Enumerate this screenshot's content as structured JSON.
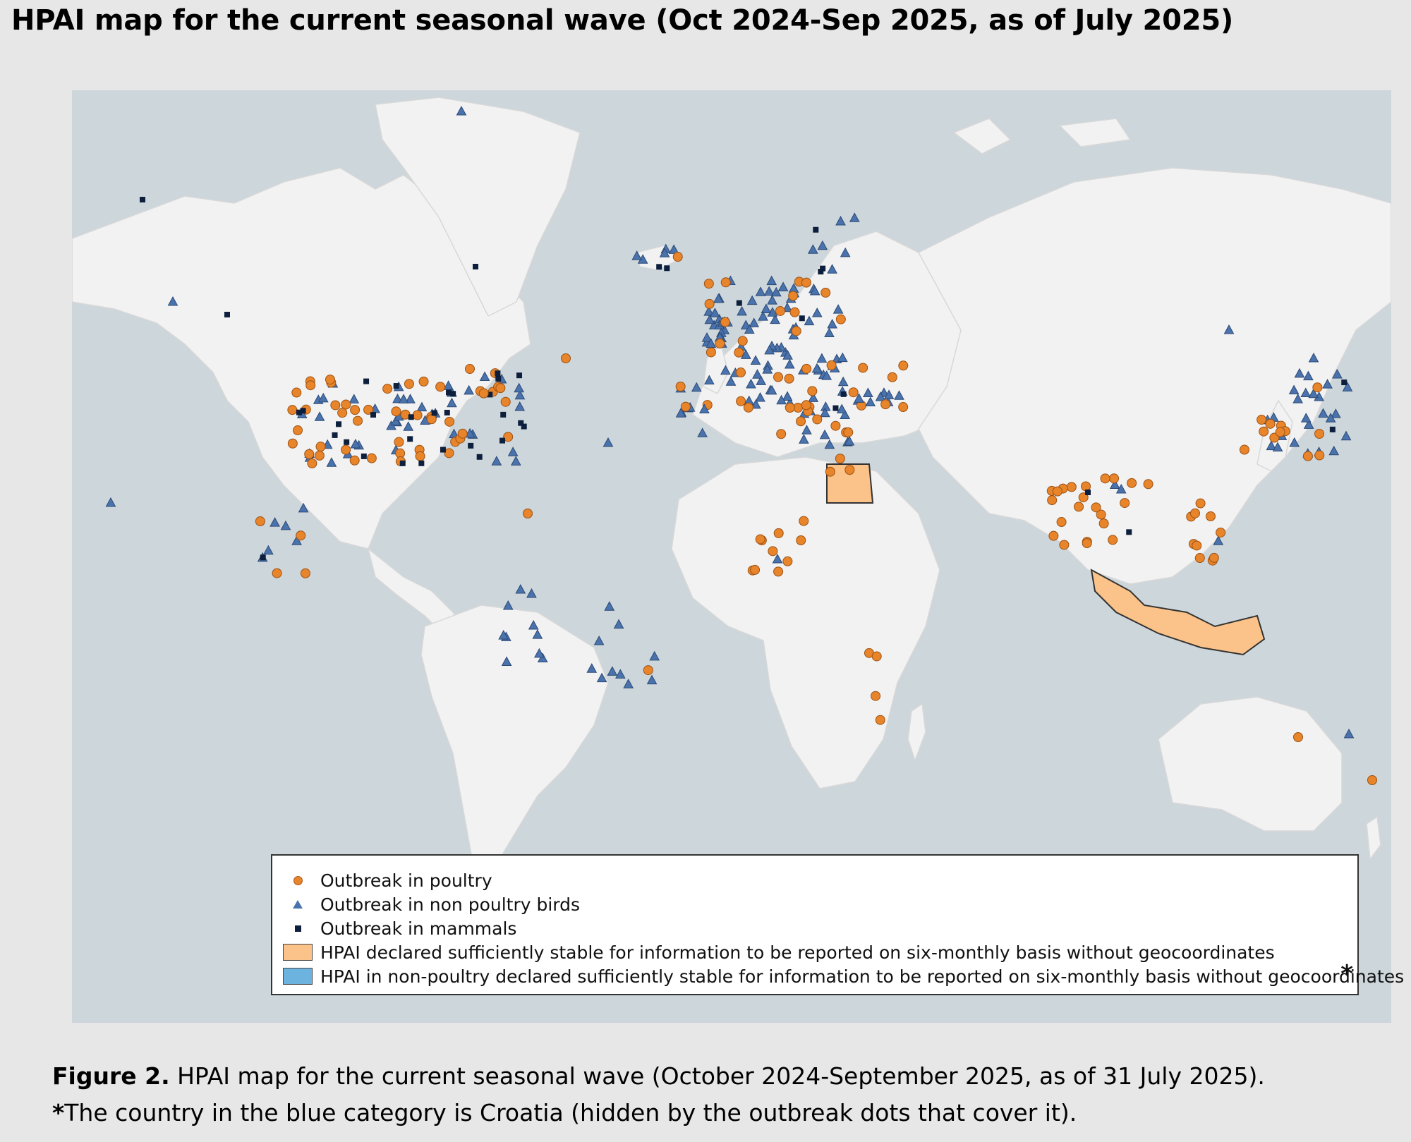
{
  "title": "HPAI map for the current seasonal wave (Oct 2024-Sep 2025, as of July 2025)",
  "map": {
    "colors": {
      "ocean": "#cdd6db",
      "land": "#f2f2f2",
      "poultry": "#e8842a",
      "non_poultry_birds": "#4a73ad",
      "mammals": "#0d1f3c",
      "stable_poultry_fill": "#fbc389",
      "stable_non_poultry_fill": "#6db3e0"
    },
    "shaded_countries": [
      "Egypt",
      "Indonesia"
    ],
    "legend": {
      "items": [
        {
          "symbol": "circle",
          "label": "Outbreak in poultry"
        },
        {
          "symbol": "triangle",
          "label": "Outbreak in non poultry birds"
        },
        {
          "symbol": "square",
          "label": "Outbreak in mammals"
        },
        {
          "symbol": "orange-box",
          "label": "HPAI declared sufficiently stable for information to be reported  on six-monthly basis without geocoordinates"
        },
        {
          "symbol": "blue-box",
          "label": "HPAI in non-poultry declared sufficiently stable for information to be reported  on six-monthly basis without geocoordinates"
        }
      ],
      "footnote_mark": "*"
    }
  },
  "caption": {
    "figure_label": "Figure 2.",
    "figure_text": " HPAI map for the current seasonal wave (October 2024-September 2025, as of 31 July 2025).",
    "note_mark": "*",
    "note_text": "The country in the blue category is Croatia (hidden by the outbreak dots that cover it)."
  }
}
